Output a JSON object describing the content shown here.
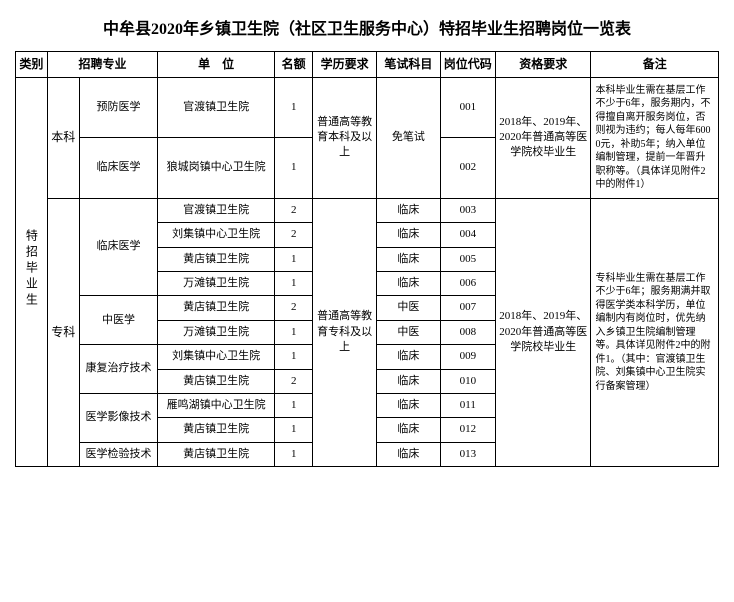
{
  "title": "中牟县2020年乡镇卫生院（社区卫生服务中心）特招毕业生招聘岗位一览表",
  "fonts": {
    "title_size": "16px",
    "header_size": "12px",
    "cell_size": "11px",
    "remarks_size": "10px"
  },
  "colors": {
    "border": "#000000",
    "text": "#000000",
    "background": "#ffffff"
  },
  "headers": {
    "category": "类别",
    "major": "招聘专业",
    "unit": "单　位",
    "quota": "名额",
    "edu": "学历要求",
    "exam": "笔试科目",
    "code": "岗位代码",
    "qual": "资格要求",
    "remarks": "备注"
  },
  "category_label": "特招毕业生",
  "levels": {
    "benke": "本科",
    "zhuanke": "专科"
  },
  "benke_rows": [
    {
      "major": "预防医学",
      "unit": "官渡镇卫生院",
      "quota": "1",
      "code": "001"
    },
    {
      "major": "临床医学",
      "unit": "狼城岗镇中心卫生院",
      "quota": "1",
      "code": "002"
    }
  ],
  "benke_edu": "普通高等教育本科及以上",
  "benke_exam": "免笔试",
  "benke_qual": "2018年、2019年、2020年普通高等医学院校毕业生",
  "benke_remarks": "本科毕业生需在基层工作不少于6年，服务期内，不得擅自离开服务岗位，否则视为违约；每人每年6000元，补助5年；纳入单位编制管理，提前一年晋升职称等。（具体详见附件2中的附件1）",
  "zhuanke_edu": "普通高等教育专科及以上",
  "zhuanke_qual": "2018年、2019年、2020年普通高等医学院校毕业生",
  "zhuanke_remarks": "专科毕业生需在基层工作不少于6年；服务期满并取得医学类本科学历，单位编制内有岗位时，优先纳入乡镇卫生院编制管理等。具体详见附件2中的附件1。（其中：官渡镇卫生院、刘集镇中心卫生院实行备案管理）",
  "zhuanke_rows": [
    {
      "major": "临床医学",
      "major_span": 4,
      "unit": "官渡镇卫生院",
      "quota": "2",
      "exam": "临床",
      "code": "003"
    },
    {
      "unit": "刘集镇中心卫生院",
      "quota": "2",
      "exam": "临床",
      "code": "004"
    },
    {
      "unit": "黄店镇卫生院",
      "quota": "1",
      "exam": "临床",
      "code": "005"
    },
    {
      "unit": "万滩镇卫生院",
      "quota": "1",
      "exam": "临床",
      "code": "006"
    },
    {
      "major": "中医学",
      "major_span": 2,
      "unit": "黄店镇卫生院",
      "quota": "2",
      "exam": "中医",
      "code": "007"
    },
    {
      "unit": "万滩镇卫生院",
      "quota": "1",
      "exam": "中医",
      "code": "008"
    },
    {
      "major": "康复治疗技术",
      "major_span": 2,
      "unit": "刘集镇中心卫生院",
      "quota": "1",
      "exam": "临床",
      "code": "009"
    },
    {
      "unit": "黄店镇卫生院",
      "quota": "2",
      "exam": "临床",
      "code": "010"
    },
    {
      "major": "医学影像技术",
      "major_span": 2,
      "unit": "雁鸣湖镇中心卫生院",
      "quota": "1",
      "exam": "临床",
      "code": "011"
    },
    {
      "unit": "黄店镇卫生院",
      "quota": "1",
      "exam": "临床",
      "code": "012"
    },
    {
      "major": "医学检验技术",
      "major_span": 1,
      "unit": "黄店镇卫生院",
      "quota": "1",
      "exam": "临床",
      "code": "013"
    }
  ]
}
